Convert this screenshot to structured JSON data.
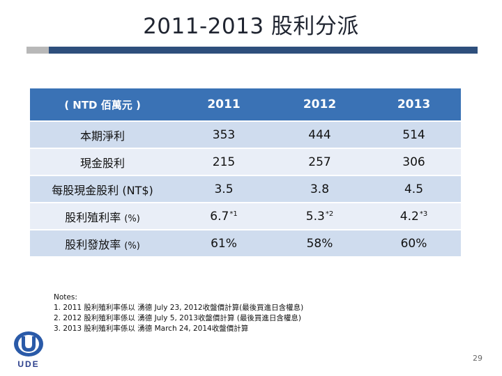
{
  "title": "2011-2013 股利分派",
  "table": {
    "header": {
      "unit": "( NTD 佰萬元 )",
      "years": [
        "2011",
        "2012",
        "2013"
      ]
    },
    "rows": [
      {
        "label": "本期淨利",
        "suffix": "",
        "values": [
          "353",
          "444",
          "514"
        ],
        "sups": [
          "",
          "",
          ""
        ]
      },
      {
        "label": "現金股利",
        "suffix": "",
        "values": [
          "215",
          "257",
          "306"
        ],
        "sups": [
          "",
          "",
          ""
        ]
      },
      {
        "label": "每股現金股利",
        "suffix": "(NT$)",
        "values": [
          "3.5",
          "3.8",
          "4.5"
        ],
        "sups": [
          "",
          "",
          ""
        ]
      },
      {
        "label": "股利殖利率",
        "suffix": "(%)",
        "values": [
          "6.7",
          "5.3",
          "4.2"
        ],
        "sups": [
          "*1",
          "*2",
          "*3"
        ]
      },
      {
        "label": "股利發放率",
        "suffix": "(%)",
        "values": [
          "61%",
          "58%",
          "60%"
        ],
        "sups": [
          "",
          "",
          ""
        ]
      }
    ]
  },
  "notes": {
    "heading": "Notes:",
    "lines": [
      "1. 2011 股利殖利率係以 湧德 July 23, 2012收盤價計算(最後買進日含權息)",
      "2. 2012 股利殖利率係以 湧德 July 5, 2013收盤價計算 (最後買進日含權息)",
      "3. 2013 股利殖利率係以 湧德 March 24, 2014收盤價計算"
    ]
  },
  "logo": {
    "text": "UDE"
  },
  "page_number": "29",
  "colors": {
    "header_bg": "#3a72b5",
    "row_dark": "#cfdcee",
    "row_light": "#e9eef7",
    "rule_blue": "#2e4f7c",
    "rule_gray": "#b8b8b8"
  }
}
